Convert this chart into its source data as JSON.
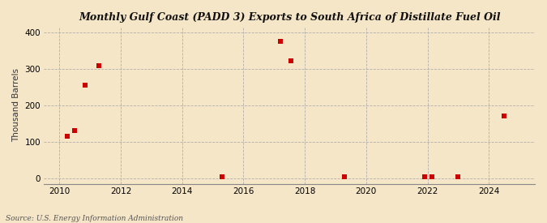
{
  "title": "Monthly Gulf Coast (PADD 3) Exports to South Africa of Distillate Fuel Oil",
  "ylabel": "Thousand Barrels",
  "source": "Source: U.S. Energy Information Administration",
  "background_color": "#F5E6C8",
  "plot_background_color": "#F5E6C8",
  "marker_color": "#CC0000",
  "marker_size": 4,
  "xlim": [
    2009.5,
    2025.5
  ],
  "ylim": [
    -15,
    415
  ],
  "yticks": [
    0,
    100,
    200,
    300,
    400
  ],
  "xticks": [
    2010,
    2012,
    2014,
    2016,
    2018,
    2020,
    2022,
    2024
  ],
  "data_x": [
    2010.25,
    2010.5,
    2010.85,
    2011.3,
    2015.3,
    2017.2,
    2017.55,
    2019.3,
    2021.9,
    2022.15,
    2023.0,
    2024.5
  ],
  "data_y": [
    115,
    130,
    255,
    310,
    5,
    375,
    322,
    5,
    5,
    5,
    5,
    170
  ]
}
